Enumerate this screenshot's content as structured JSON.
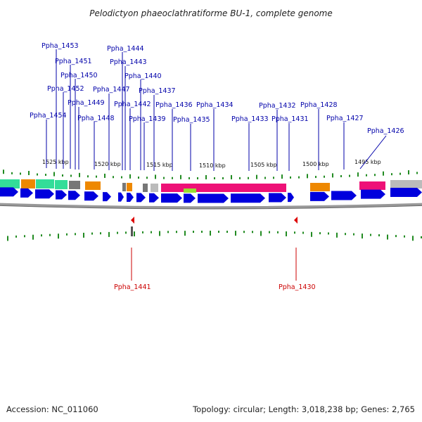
{
  "title": "Pelodictyon phaeoclathratiforme BU-1, complete genome",
  "footer": {
    "accession": "Accession: NC_011060",
    "summary": "Topology: circular; Length: 3,018,238 bp; Genes: 2,765"
  },
  "colors": {
    "forward_label": "#0000aa",
    "reverse_label": "#cc0000",
    "gene_arrow": "#0000dd",
    "tick": "#228b22",
    "cog_teal": "#33dd99",
    "cog_orange": "#ee8800",
    "cog_gray": "#777777",
    "cog_lightgray": "#bbbbbb",
    "cog_magenta": "#ee1177",
    "cog_lime": "#99dd33"
  },
  "kbp_labels": [
    "1525 kbp",
    "1520 kbp",
    "1515 kbp",
    "1510 kbp",
    "1505 kbp",
    "1500 kbp",
    "1495 kbp"
  ],
  "forward_genes": [
    "Ppha_1453",
    "Ppha_1451",
    "Ppha_1450",
    "Ppha_1452",
    "Ppha_1449",
    "Ppha_1454",
    "Ppha_1448",
    "Ppha_1444",
    "Ppha_1443",
    "Ppha_1440",
    "Ppha_1447",
    "Ppha_1437",
    "Ppha_1442",
    "Ppha_1439",
    "Ppha_1436",
    "Ppha_1435",
    "Ppha_1434",
    "Ppha_1433",
    "Ppha_1432",
    "Ppha_1431",
    "Ppha_1428",
    "Ppha_1427",
    "Ppha_1426"
  ],
  "reverse_genes": [
    "Ppha_1441",
    "Ppha_1430"
  ]
}
